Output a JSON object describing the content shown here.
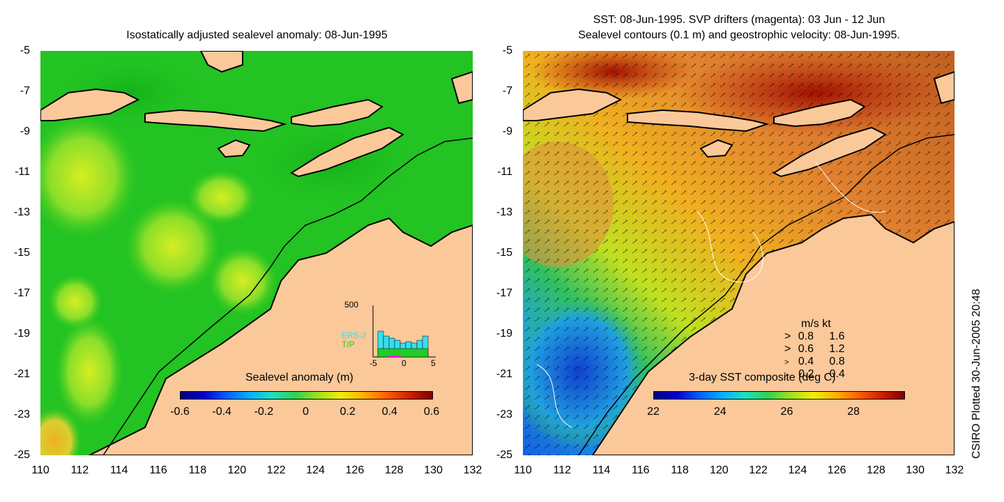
{
  "left_panel": {
    "title": "Isostatically adjusted sealevel anomaly: 08-Jun-1995",
    "y_ticks": [
      "-5",
      "-7",
      "-9",
      "-11",
      "-13",
      "-15",
      "-17",
      "-19",
      "-21",
      "-23",
      "-25"
    ],
    "x_ticks": [
      "110",
      "112",
      "114",
      "116",
      "118",
      "120",
      "122",
      "124",
      "126",
      "128",
      "130",
      "132"
    ],
    "colorbar_label": "Sealevel anomaly (m)",
    "colorbar_ticks": [
      "-0.6",
      "-0.4",
      "-0.2",
      "0",
      "0.2",
      "0.4",
      "0.6"
    ],
    "histogram": {
      "ymax_label": "500",
      "series_labels": [
        "ERS-2",
        "T/P"
      ],
      "x_ticks": [
        "-5",
        "0",
        "5"
      ],
      "colors": {
        "ers2": "#33e0f0",
        "tp": "#22cc22",
        "drifter": "#ff00ff"
      }
    }
  },
  "right_panel": {
    "title_line1": "SST: 08-Jun-1995. SVP drifters (magenta): 03 Jun - 12 Jun",
    "title_line2": "Sealevel contours (0.1 m) and geostrophic velocity: 08-Jun-1995.",
    "y_ticks": [
      "-5",
      "-7",
      "-9",
      "-11",
      "-13",
      "-15",
      "-17",
      "-19",
      "-21",
      "-23",
      "-25"
    ],
    "x_ticks": [
      "110",
      "112",
      "114",
      "116",
      "118",
      "120",
      "122",
      "124",
      "126",
      "128",
      "130",
      "132"
    ],
    "colorbar_label": "3-day SST composite (deg C)",
    "colorbar_ticks": [
      "22",
      "24",
      "26",
      "28"
    ],
    "velocity_legend": {
      "header": "m/s  kt",
      "rows": [
        {
          "ms": "0.8",
          "kt": "1.6"
        },
        {
          "ms": "0.6",
          "kt": "1.2"
        },
        {
          "ms": "0.4",
          "kt": "0.8"
        },
        {
          "ms": "0.2",
          "kt": "0.4"
        }
      ]
    }
  },
  "footer_text": "CSIRO Plotted 30-Jun-2005 20:48",
  "colors": {
    "land": "#fbc89a",
    "ocean_left": "#22c322",
    "coast": "#000000"
  }
}
